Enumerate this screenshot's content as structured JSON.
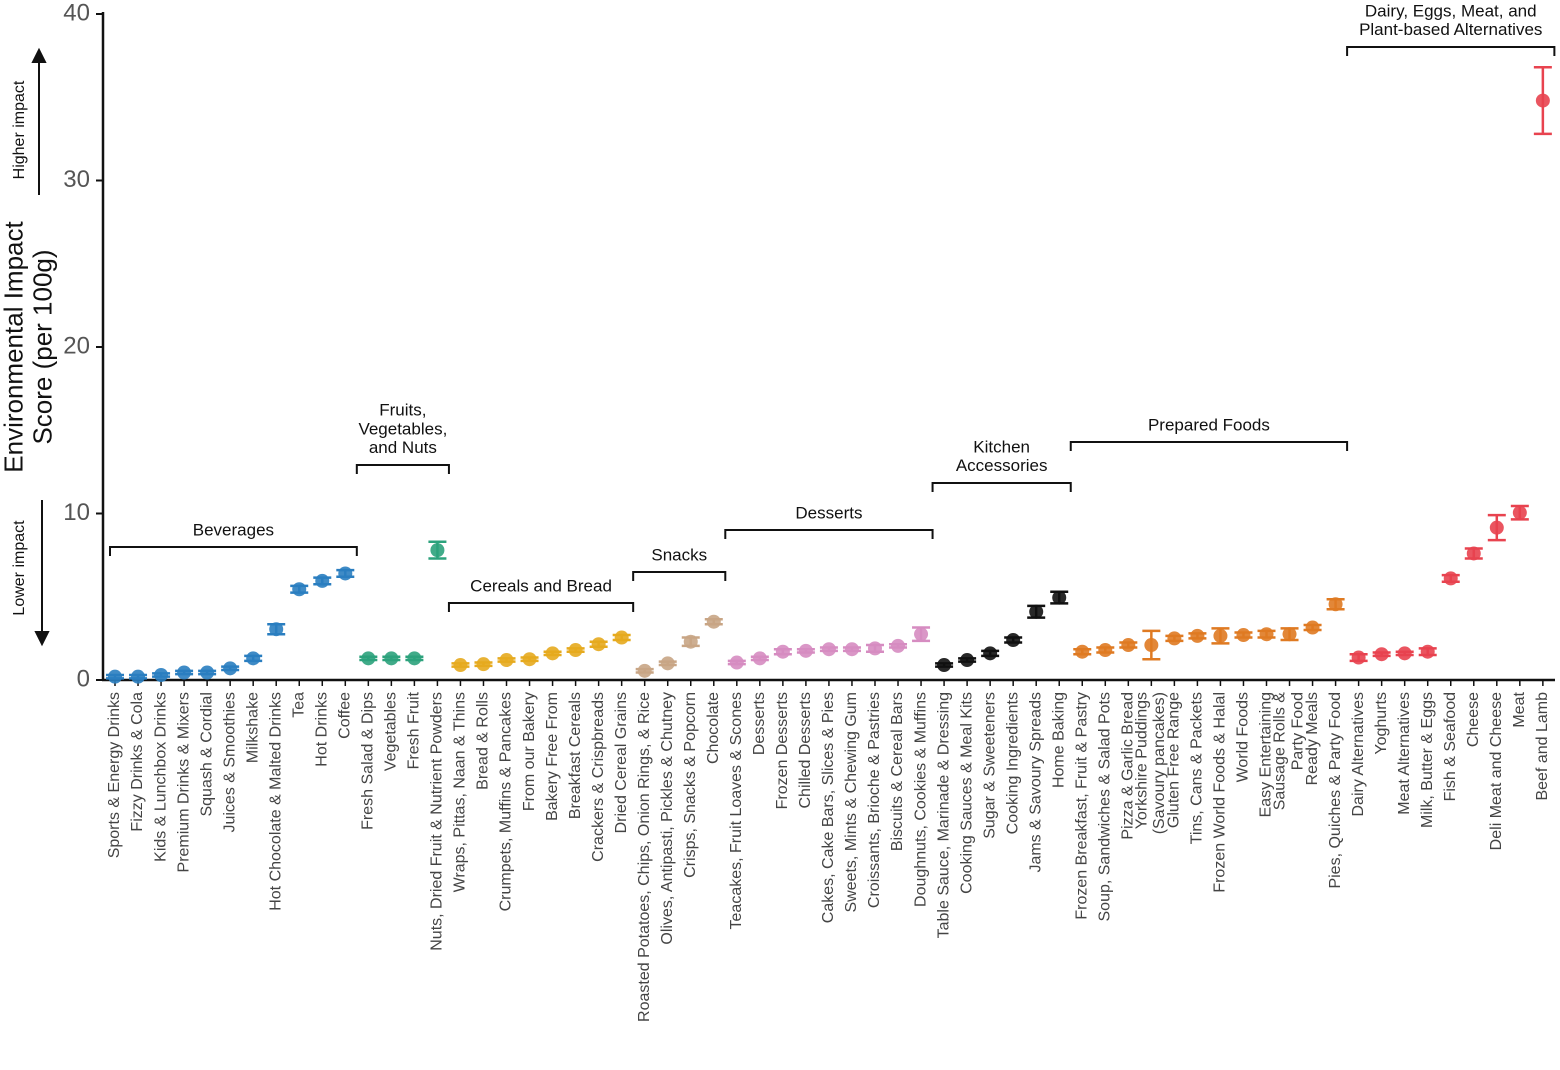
{
  "chart_data": {
    "type": "errorbar",
    "y_label": "Environmental Impact\nScore (per 100g)",
    "annotations": [
      "Higher impact",
      "Lower impact"
    ],
    "ylim": [
      0,
      40
    ],
    "yticks": [
      0,
      10,
      20,
      30,
      40
    ],
    "groups": [
      {
        "name": "Beverages",
        "color": "#2a7ec0",
        "categories": [
          "Sports & Energy Drinks",
          "Fizzy Drinks & Cola",
          "Kids & Lunchbox Drinks",
          "Premium Drinks & Mixers",
          "Squash & Cordial",
          "Juices & Smoothies",
          "Milkshake",
          "Hot Chocolate & Malted Drinks",
          "Tea",
          "Hot Drinks",
          "Coffee"
        ],
        "values": [
          0.2,
          0.2,
          0.3,
          0.45,
          0.45,
          0.7,
          1.3,
          3.05,
          5.45,
          5.95,
          6.4
        ],
        "errors": [
          0.1,
          0.1,
          0.1,
          0.1,
          0.1,
          0.1,
          0.15,
          0.3,
          0.2,
          0.2,
          0.2
        ]
      },
      {
        "name": "Fruits,\nVegetables,\nand Nuts",
        "color": "#2ca27c",
        "categories": [
          "Fresh Salad & Dips",
          "Vegetables",
          "Fresh Fruit",
          "Nuts, Dried Fruit & Nutrient Powders"
        ],
        "values": [
          1.3,
          1.3,
          1.3,
          7.8
        ],
        "errors": [
          0.1,
          0.1,
          0.1,
          0.5
        ]
      },
      {
        "name": "Cereals and Bread",
        "color": "#e6aa1e",
        "categories": [
          "Wraps, Pittas, Naan & Thins",
          "Bread & Rolls",
          "Crumpets, Muffins & Pancakes",
          "From our Bakery",
          "Bakery Free From",
          "Breakfast Cereals",
          "Crackers & Crispbreads",
          "Dried Cereal Grains"
        ],
        "values": [
          0.9,
          0.95,
          1.2,
          1.25,
          1.6,
          1.8,
          2.15,
          2.55
        ],
        "errors": [
          0.1,
          0.1,
          0.1,
          0.1,
          0.1,
          0.1,
          0.15,
          0.15
        ]
      },
      {
        "name": "Snacks",
        "color": "#c8a585",
        "categories": [
          "Roasted Potatoes, Chips, Onion Rings, & Rice",
          "Olives, Antipasti, Pickles & Chutney",
          "Crisps, Snacks & Popcorn",
          "Chocolate"
        ],
        "values": [
          0.55,
          1.0,
          2.3,
          3.5
        ],
        "errors": [
          0.1,
          0.1,
          0.25,
          0.15
        ]
      },
      {
        "name": "Desserts",
        "color": "#d68cc1",
        "categories": [
          "Teacakes, Fruit Loaves & Scones",
          "Desserts",
          "Frozen Desserts",
          "Chilled Desserts",
          "Cakes, Cake Bars, Slices & Pies",
          "Sweets, Mints & Chewing Gum",
          "Croissants, Brioche & Pastries",
          "Biscuits & Cereal Bars",
          "Doughnuts, Cookies & Muffins"
        ],
        "values": [
          1.05,
          1.3,
          1.7,
          1.75,
          1.85,
          1.85,
          1.9,
          2.05,
          2.75
        ],
        "errors": [
          0.1,
          0.1,
          0.15,
          0.1,
          0.1,
          0.1,
          0.2,
          0.1,
          0.4
        ]
      },
      {
        "name": "Kitchen\nAccessories",
        "color": "#111111",
        "categories": [
          "Table Sauce, Marinade & Dressing",
          "Cooking Sauces & Meal Kits",
          "Sugar & Sweeteners",
          "Cooking Ingredients",
          "Jams & Savoury Spreads",
          "Home Baking"
        ],
        "values": [
          0.9,
          1.2,
          1.6,
          2.4,
          4.1,
          4.95
        ],
        "errors": [
          0.1,
          0.1,
          0.15,
          0.15,
          0.35,
          0.35
        ]
      },
      {
        "name": "Prepared Foods",
        "color": "#df7a22",
        "categories": [
          "Frozen Breakfast, Fruit & Pastry",
          "Soup, Sandwiches & Salad Pots",
          "Pizza & Garlic Bread",
          "Yorkshire Puddings\n(Savoury pancakes)",
          "Gluten Free Range",
          "Tins, Cans & Packets",
          "Frozen World Foods & Halal",
          "World Foods",
          "Easy Entertaining",
          "Sausage Rolls &\nParty Food",
          "Ready Meals",
          "Pies, Quiches & Party Food"
        ],
        "values": [
          1.7,
          1.8,
          2.1,
          2.1,
          2.5,
          2.65,
          2.65,
          2.7,
          2.75,
          2.75,
          3.15,
          4.55
        ],
        "errors": [
          0.15,
          0.15,
          0.15,
          0.85,
          0.15,
          0.15,
          0.45,
          0.15,
          0.2,
          0.35,
          0.15,
          0.3
        ]
      },
      {
        "name": "Dairy, Eggs, Meat, and\nPlant-based Alternatives",
        "color": "#e8434f",
        "categories": [
          "Dairy Alternatives",
          "Yoghurts",
          "Meat Alternatives",
          "Milk, Butter & Eggs",
          "Fish & Seafood",
          "Cheese",
          "Deli Meat and Cheese",
          "Meat",
          "Beef and Lamb"
        ],
        "values": [
          1.35,
          1.55,
          1.6,
          1.7,
          6.1,
          7.6,
          9.15,
          10.05,
          34.8
        ],
        "errors": [
          0.2,
          0.1,
          0.1,
          0.2,
          0.2,
          0.3,
          0.75,
          0.4,
          2.0
        ]
      }
    ]
  }
}
